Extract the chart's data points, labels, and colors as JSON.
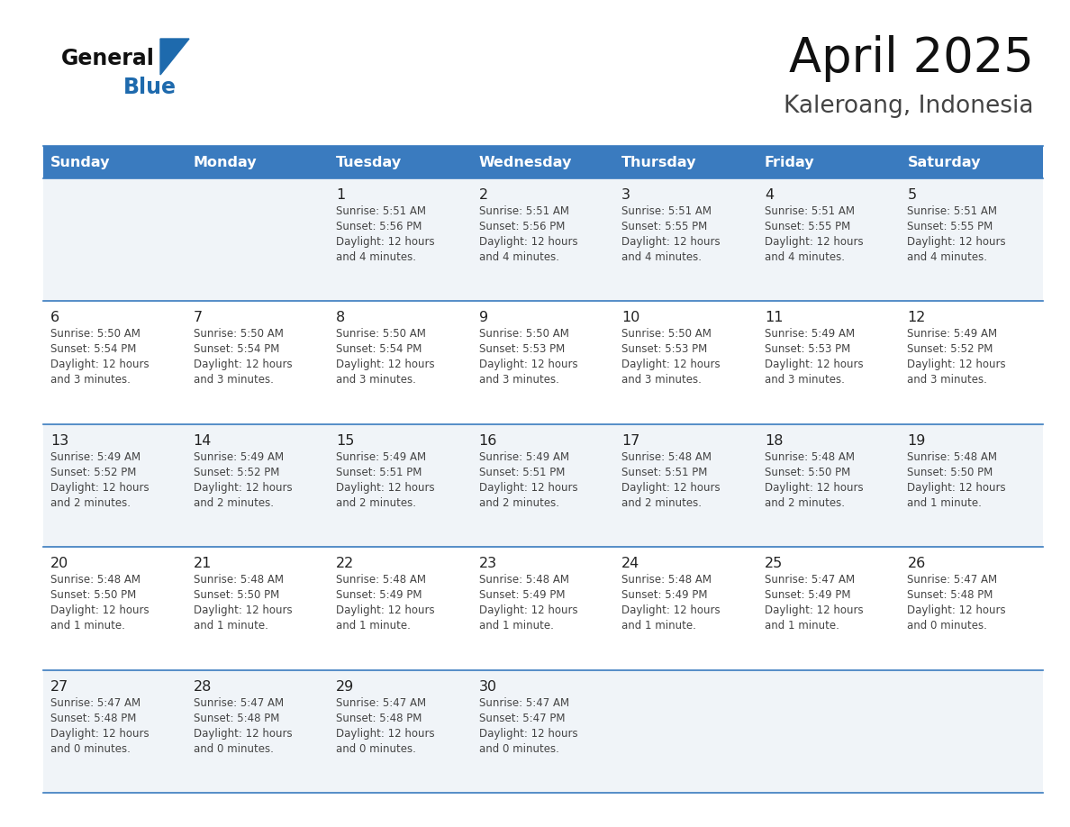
{
  "title": "April 2025",
  "subtitle": "Kaleroang, Indonesia",
  "header_bg_color": "#3a7bbf",
  "header_text_color": "#ffffff",
  "day_names": [
    "Sunday",
    "Monday",
    "Tuesday",
    "Wednesday",
    "Thursday",
    "Friday",
    "Saturday"
  ],
  "row_bg_color_odd": "#f0f4f8",
  "row_bg_color_even": "#ffffff",
  "cell_border_color": "#3a7bbf",
  "number_color": "#222222",
  "info_color": "#444444",
  "title_color": "#111111",
  "subtitle_color": "#444444",
  "logo_general_color": "#111111",
  "logo_blue_color": "#1e6aad",
  "logo_triangle_color": "#1e6aad",
  "days": [
    {
      "date": 1,
      "col": 2,
      "row": 0,
      "sunrise": "5:51 AM",
      "sunset": "5:56 PM",
      "daylight_min": "4 minutes."
    },
    {
      "date": 2,
      "col": 3,
      "row": 0,
      "sunrise": "5:51 AM",
      "sunset": "5:56 PM",
      "daylight_min": "4 minutes."
    },
    {
      "date": 3,
      "col": 4,
      "row": 0,
      "sunrise": "5:51 AM",
      "sunset": "5:55 PM",
      "daylight_min": "4 minutes."
    },
    {
      "date": 4,
      "col": 5,
      "row": 0,
      "sunrise": "5:51 AM",
      "sunset": "5:55 PM",
      "daylight_min": "4 minutes."
    },
    {
      "date": 5,
      "col": 6,
      "row": 0,
      "sunrise": "5:51 AM",
      "sunset": "5:55 PM",
      "daylight_min": "4 minutes."
    },
    {
      "date": 6,
      "col": 0,
      "row": 1,
      "sunrise": "5:50 AM",
      "sunset": "5:54 PM",
      "daylight_min": "3 minutes."
    },
    {
      "date": 7,
      "col": 1,
      "row": 1,
      "sunrise": "5:50 AM",
      "sunset": "5:54 PM",
      "daylight_min": "3 minutes."
    },
    {
      "date": 8,
      "col": 2,
      "row": 1,
      "sunrise": "5:50 AM",
      "sunset": "5:54 PM",
      "daylight_min": "3 minutes."
    },
    {
      "date": 9,
      "col": 3,
      "row": 1,
      "sunrise": "5:50 AM",
      "sunset": "5:53 PM",
      "daylight_min": "3 minutes."
    },
    {
      "date": 10,
      "col": 4,
      "row": 1,
      "sunrise": "5:50 AM",
      "sunset": "5:53 PM",
      "daylight_min": "3 minutes."
    },
    {
      "date": 11,
      "col": 5,
      "row": 1,
      "sunrise": "5:49 AM",
      "sunset": "5:53 PM",
      "daylight_min": "3 minutes."
    },
    {
      "date": 12,
      "col": 6,
      "row": 1,
      "sunrise": "5:49 AM",
      "sunset": "5:52 PM",
      "daylight_min": "3 minutes."
    },
    {
      "date": 13,
      "col": 0,
      "row": 2,
      "sunrise": "5:49 AM",
      "sunset": "5:52 PM",
      "daylight_min": "2 minutes."
    },
    {
      "date": 14,
      "col": 1,
      "row": 2,
      "sunrise": "5:49 AM",
      "sunset": "5:52 PM",
      "daylight_min": "2 minutes."
    },
    {
      "date": 15,
      "col": 2,
      "row": 2,
      "sunrise": "5:49 AM",
      "sunset": "5:51 PM",
      "daylight_min": "2 minutes."
    },
    {
      "date": 16,
      "col": 3,
      "row": 2,
      "sunrise": "5:49 AM",
      "sunset": "5:51 PM",
      "daylight_min": "2 minutes."
    },
    {
      "date": 17,
      "col": 4,
      "row": 2,
      "sunrise": "5:48 AM",
      "sunset": "5:51 PM",
      "daylight_min": "2 minutes."
    },
    {
      "date": 18,
      "col": 5,
      "row": 2,
      "sunrise": "5:48 AM",
      "sunset": "5:50 PM",
      "daylight_min": "2 minutes."
    },
    {
      "date": 19,
      "col": 6,
      "row": 2,
      "sunrise": "5:48 AM",
      "sunset": "5:50 PM",
      "daylight_min": "1 minute."
    },
    {
      "date": 20,
      "col": 0,
      "row": 3,
      "sunrise": "5:48 AM",
      "sunset": "5:50 PM",
      "daylight_min": "1 minute."
    },
    {
      "date": 21,
      "col": 1,
      "row": 3,
      "sunrise": "5:48 AM",
      "sunset": "5:50 PM",
      "daylight_min": "1 minute."
    },
    {
      "date": 22,
      "col": 2,
      "row": 3,
      "sunrise": "5:48 AM",
      "sunset": "5:49 PM",
      "daylight_min": "1 minute."
    },
    {
      "date": 23,
      "col": 3,
      "row": 3,
      "sunrise": "5:48 AM",
      "sunset": "5:49 PM",
      "daylight_min": "1 minute."
    },
    {
      "date": 24,
      "col": 4,
      "row": 3,
      "sunrise": "5:48 AM",
      "sunset": "5:49 PM",
      "daylight_min": "1 minute."
    },
    {
      "date": 25,
      "col": 5,
      "row": 3,
      "sunrise": "5:47 AM",
      "sunset": "5:49 PM",
      "daylight_min": "1 minute."
    },
    {
      "date": 26,
      "col": 6,
      "row": 3,
      "sunrise": "5:47 AM",
      "sunset": "5:48 PM",
      "daylight_min": "0 minutes."
    },
    {
      "date": 27,
      "col": 0,
      "row": 4,
      "sunrise": "5:47 AM",
      "sunset": "5:48 PM",
      "daylight_min": "0 minutes."
    },
    {
      "date": 28,
      "col": 1,
      "row": 4,
      "sunrise": "5:47 AM",
      "sunset": "5:48 PM",
      "daylight_min": "0 minutes."
    },
    {
      "date": 29,
      "col": 2,
      "row": 4,
      "sunrise": "5:47 AM",
      "sunset": "5:48 PM",
      "daylight_min": "0 minutes."
    },
    {
      "date": 30,
      "col": 3,
      "row": 4,
      "sunrise": "5:47 AM",
      "sunset": "5:47 PM",
      "daylight_min": "0 minutes."
    }
  ],
  "num_rows": 5,
  "num_cols": 7
}
